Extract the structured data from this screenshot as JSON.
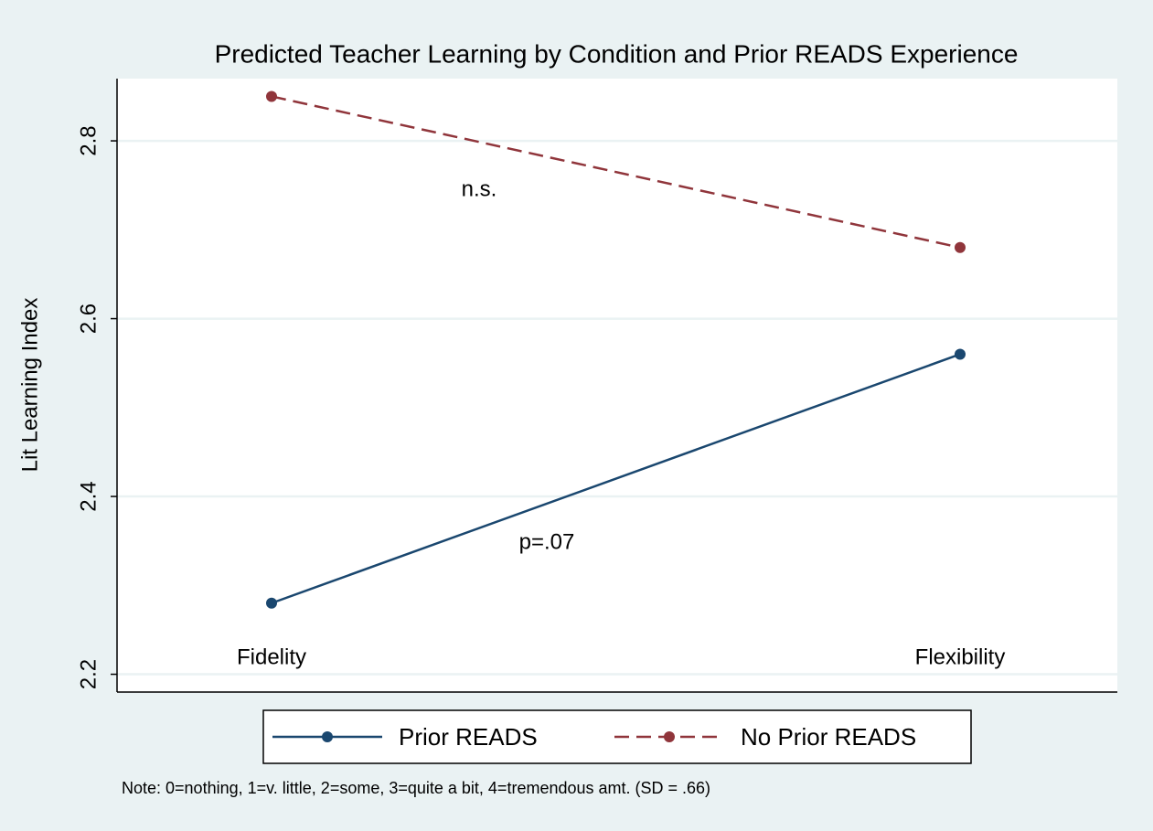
{
  "chart_data": {
    "type": "line",
    "title": "Predicted Teacher Learning by Condition and Prior READS Experience",
    "ylabel": "Lit Learning Index",
    "categories": [
      "Fidelity",
      "Flexibility"
    ],
    "series": [
      {
        "name": "Prior READS",
        "color": "#1a476f",
        "dashed": false,
        "values": [
          2.28,
          2.56
        ]
      },
      {
        "name": "No Prior READS",
        "color": "#90353b",
        "dashed": true,
        "values": [
          2.85,
          2.68
        ]
      }
    ],
    "annotations": [
      "n.s.",
      "p=.07"
    ],
    "note": "Note: 0=nothing, 1=v. little, 2=some, 3=quite a bit, 4=tremendous amt. (SD = .66)",
    "ylim": [
      2.18,
      2.87
    ],
    "yticks": [
      {
        "value": 2.2,
        "label": "2.2"
      },
      {
        "value": 2.4,
        "label": "2.4"
      },
      {
        "value": 2.6,
        "label": "2.6"
      },
      {
        "value": 2.8,
        "label": "2.8"
      }
    ],
    "grid": true,
    "legend": "bottom"
  }
}
